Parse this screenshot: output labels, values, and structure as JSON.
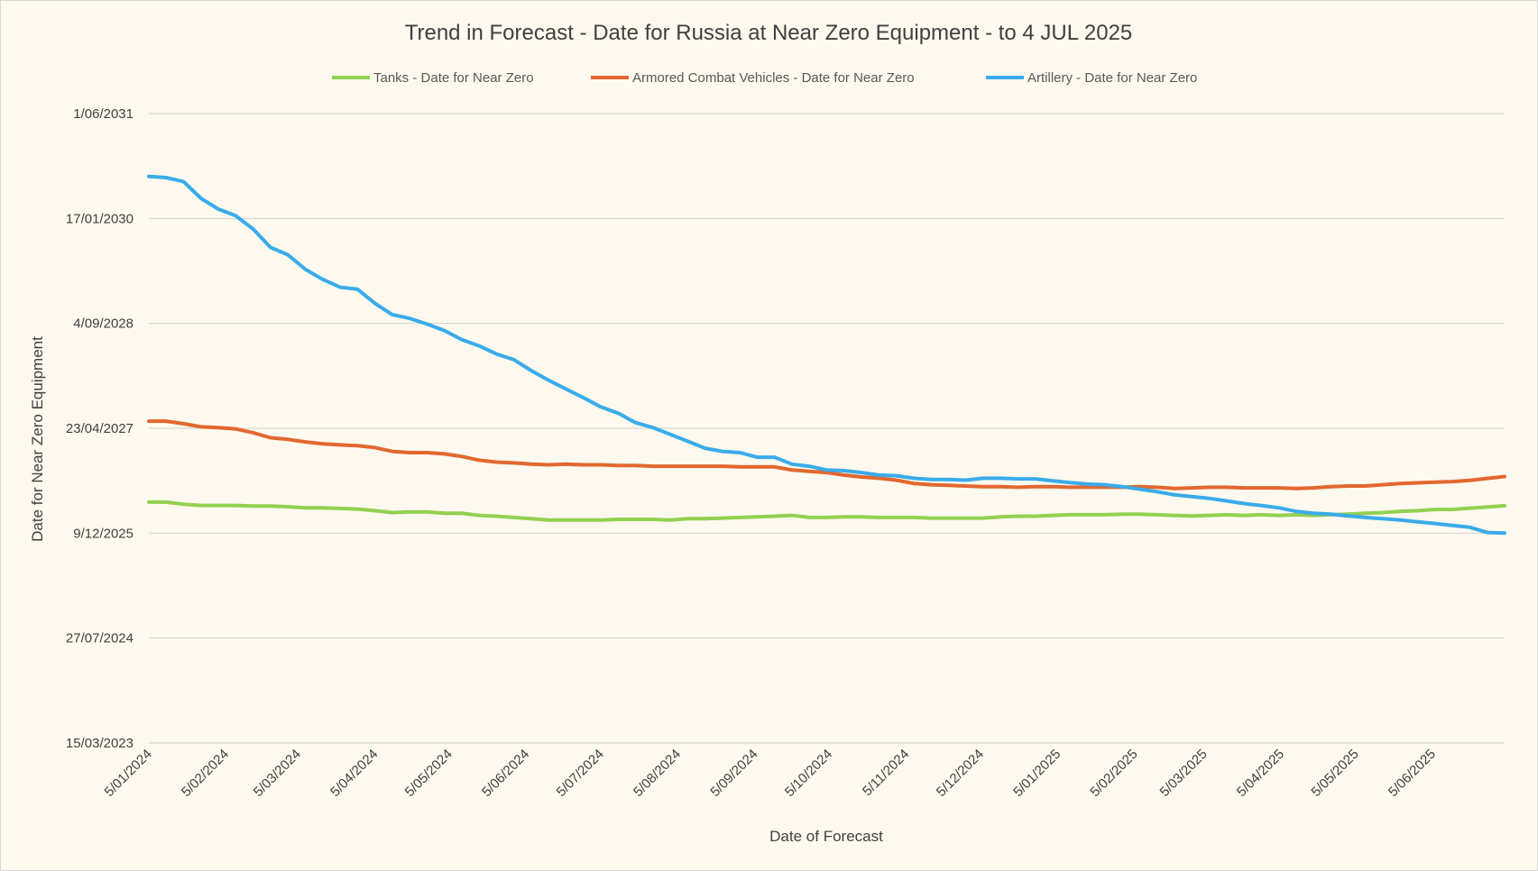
{
  "chart_data": {
    "type": "line",
    "title": "Trend in Forecast - Date for Russia at Near Zero Equipment - to 4 JUL 2025",
    "xlabel": "Date of Forecast",
    "ylabel": "Date for Near Zero Equipment",
    "x_type": "date",
    "xlim": [
      "2024-01-05",
      "2025-07-04"
    ],
    "ylim": [
      "2023-03-15",
      "2031-06-01"
    ],
    "x_ticks": [
      "5/01/2024",
      "5/02/2024",
      "5/03/2024",
      "5/04/2024",
      "5/05/2024",
      "5/06/2024",
      "5/07/2024",
      "5/08/2024",
      "5/09/2024",
      "5/10/2024",
      "5/11/2024",
      "5/12/2024",
      "5/01/2025",
      "5/02/2025",
      "5/03/2025",
      "5/04/2025",
      "5/05/2025",
      "5/06/2025"
    ],
    "y_ticks": [
      "1/06/2031",
      "17/01/2030",
      "4/09/2028",
      "23/04/2027",
      "9/12/2025",
      "27/07/2024",
      "15/03/2023"
    ],
    "grid": true,
    "legend_position": "top",
    "series": [
      {
        "name": "Tanks - Date for Near Zero",
        "color": "#92d050",
        "x": [
          "2024-01-05",
          "2024-01-12",
          "2024-01-19",
          "2024-01-26",
          "2024-02-02",
          "2024-02-09",
          "2024-02-16",
          "2024-02-23",
          "2024-03-01",
          "2024-03-08",
          "2024-03-15",
          "2024-03-22",
          "2024-03-29",
          "2024-04-05",
          "2024-04-12",
          "2024-04-19",
          "2024-04-26",
          "2024-05-03",
          "2024-05-10",
          "2024-05-17",
          "2024-05-24",
          "2024-05-31",
          "2024-06-07",
          "2024-06-14",
          "2024-06-21",
          "2024-06-28",
          "2024-07-05",
          "2024-07-12",
          "2024-07-19",
          "2024-07-26",
          "2024-08-02",
          "2024-08-09",
          "2024-08-16",
          "2024-08-23",
          "2024-08-30",
          "2024-09-06",
          "2024-09-13",
          "2024-09-20",
          "2024-09-27",
          "2024-10-04",
          "2024-10-11",
          "2024-10-18",
          "2024-10-25",
          "2024-11-01",
          "2024-11-08",
          "2024-11-15",
          "2024-11-22",
          "2024-11-29",
          "2024-12-06",
          "2024-12-13",
          "2024-12-20",
          "2024-12-27",
          "2025-01-03",
          "2025-01-10",
          "2025-01-17",
          "2025-01-24",
          "2025-01-31",
          "2025-02-07",
          "2025-02-14",
          "2025-02-21",
          "2025-02-28",
          "2025-03-07",
          "2025-03-14",
          "2025-03-21",
          "2025-03-28",
          "2025-04-04",
          "2025-04-11",
          "2025-04-18",
          "2025-04-25",
          "2025-05-02",
          "2025-05-09",
          "2025-05-16",
          "2025-05-23",
          "2025-05-30",
          "2025-06-06",
          "2025-06-13",
          "2025-06-20",
          "2025-06-27",
          "2025-07-04"
        ],
        "y": [
          "2026-05-06",
          "2026-05-06",
          "2026-04-26",
          "2026-04-20",
          "2026-04-20",
          "2026-04-20",
          "2026-04-17",
          "2026-04-17",
          "2026-04-14",
          "2026-04-09",
          "2026-04-09",
          "2026-04-06",
          "2026-04-03",
          "2026-03-26",
          "2026-03-17",
          "2026-03-20",
          "2026-03-20",
          "2026-03-14",
          "2026-03-14",
          "2026-03-04",
          "2026-02-28",
          "2026-02-22",
          "2026-02-16",
          "2026-02-10",
          "2026-02-10",
          "2026-02-10",
          "2026-02-10",
          "2026-02-13",
          "2026-02-13",
          "2026-02-13",
          "2026-02-10",
          "2026-02-16",
          "2026-02-16",
          "2026-02-19",
          "2026-02-22",
          "2026-02-25",
          "2026-02-28",
          "2026-03-04",
          "2026-02-22",
          "2026-02-22",
          "2026-02-25",
          "2026-02-25",
          "2026-02-22",
          "2026-02-22",
          "2026-02-22",
          "2026-02-19",
          "2026-02-19",
          "2026-02-19",
          "2026-02-19",
          "2026-02-25",
          "2026-02-28",
          "2026-02-28",
          "2026-03-04",
          "2026-03-07",
          "2026-03-07",
          "2026-03-07",
          "2026-03-10",
          "2026-03-10",
          "2026-03-07",
          "2026-03-04",
          "2026-03-01",
          "2026-03-04",
          "2026-03-07",
          "2026-03-04",
          "2026-03-07",
          "2026-03-04",
          "2026-03-07",
          "2026-03-04",
          "2026-03-07",
          "2026-03-10",
          "2026-03-14",
          "2026-03-17",
          "2026-03-23",
          "2026-03-26",
          "2026-04-01",
          "2026-04-01",
          "2026-04-07",
          "2026-04-13",
          "2026-04-19"
        ]
      },
      {
        "name": "Armored Combat Vehicles - Date for Near Zero",
        "color": "#e2682f",
        "x": [
          "2024-01-05",
          "2024-01-12",
          "2024-01-19",
          "2024-01-26",
          "2024-02-02",
          "2024-02-09",
          "2024-02-16",
          "2024-02-23",
          "2024-03-01",
          "2024-03-08",
          "2024-03-15",
          "2024-03-22",
          "2024-03-29",
          "2024-04-05",
          "2024-04-12",
          "2024-04-19",
          "2024-04-26",
          "2024-05-03",
          "2024-05-10",
          "2024-05-17",
          "2024-05-24",
          "2024-05-31",
          "2024-06-07",
          "2024-06-14",
          "2024-06-21",
          "2024-06-28",
          "2024-07-05",
          "2024-07-12",
          "2024-07-19",
          "2024-07-26",
          "2024-08-02",
          "2024-08-09",
          "2024-08-16",
          "2024-08-23",
          "2024-08-30",
          "2024-09-06",
          "2024-09-13",
          "2024-09-20",
          "2024-09-27",
          "2024-10-04",
          "2024-10-11",
          "2024-10-18",
          "2024-10-25",
          "2024-11-01",
          "2024-11-08",
          "2024-11-15",
          "2024-11-22",
          "2024-11-29",
          "2024-12-06",
          "2024-12-13",
          "2024-12-20",
          "2024-12-27",
          "2025-01-03",
          "2025-01-10",
          "2025-01-17",
          "2025-01-24",
          "2025-01-31",
          "2025-02-07",
          "2025-02-14",
          "2025-02-21",
          "2025-02-28",
          "2025-03-07",
          "2025-03-14",
          "2025-03-21",
          "2025-03-28",
          "2025-04-04",
          "2025-04-11",
          "2025-04-18",
          "2025-04-25",
          "2025-05-02",
          "2025-05-09",
          "2025-05-16",
          "2025-05-23",
          "2025-05-30",
          "2025-06-06",
          "2025-06-13",
          "2025-06-20",
          "2025-06-27",
          "2025-07-04"
        ],
        "y": [
          "2027-05-27",
          "2027-05-27",
          "2027-05-15",
          "2027-04-30",
          "2027-04-26",
          "2027-04-20",
          "2027-04-02",
          "2027-03-09",
          "2027-03-01",
          "2027-02-17",
          "2027-02-08",
          "2027-02-03",
          "2027-01-30",
          "2027-01-21",
          "2027-01-03",
          "2026-12-28",
          "2026-12-28",
          "2026-12-22",
          "2026-12-10",
          "2026-11-22",
          "2026-11-13",
          "2026-11-09",
          "2026-11-03",
          "2026-10-31",
          "2026-11-03",
          "2026-10-31",
          "2026-10-31",
          "2026-10-28",
          "2026-10-28",
          "2026-10-24",
          "2026-10-24",
          "2026-10-24",
          "2026-10-24",
          "2026-10-24",
          "2026-10-21",
          "2026-10-21",
          "2026-10-21",
          "2026-10-06",
          "2026-09-30",
          "2026-09-24",
          "2026-09-12",
          "2026-09-03",
          "2026-08-28",
          "2026-08-19",
          "2026-08-03",
          "2026-07-28",
          "2026-07-25",
          "2026-07-22",
          "2026-07-19",
          "2026-07-19",
          "2026-07-16",
          "2026-07-19",
          "2026-07-19",
          "2026-07-16",
          "2026-07-16",
          "2026-07-16",
          "2026-07-16",
          "2026-07-19",
          "2026-07-16",
          "2026-07-10",
          "2026-07-13",
          "2026-07-16",
          "2026-07-16",
          "2026-07-13",
          "2026-07-13",
          "2026-07-13",
          "2026-07-10",
          "2026-07-13",
          "2026-07-19",
          "2026-07-22",
          "2026-07-22",
          "2026-07-28",
          "2026-08-03",
          "2026-08-06",
          "2026-08-09",
          "2026-08-12",
          "2026-08-18",
          "2026-08-27",
          "2026-09-05"
        ]
      },
      {
        "name": "Artillery - Date for Near Zero",
        "color": "#3aabea",
        "x": [
          "2024-01-05",
          "2024-01-12",
          "2024-01-19",
          "2024-01-26",
          "2024-02-02",
          "2024-02-09",
          "2024-02-16",
          "2024-02-23",
          "2024-03-01",
          "2024-03-08",
          "2024-03-15",
          "2024-03-22",
          "2024-03-29",
          "2024-04-05",
          "2024-04-12",
          "2024-04-19",
          "2024-04-26",
          "2024-05-03",
          "2024-05-10",
          "2024-05-17",
          "2024-05-24",
          "2024-05-31",
          "2024-06-07",
          "2024-06-14",
          "2024-06-21",
          "2024-06-28",
          "2024-07-05",
          "2024-07-12",
          "2024-07-19",
          "2024-07-26",
          "2024-08-02",
          "2024-08-09",
          "2024-08-16",
          "2024-08-23",
          "2024-08-30",
          "2024-09-06",
          "2024-09-13",
          "2024-09-20",
          "2024-09-27",
          "2024-10-04",
          "2024-10-11",
          "2024-10-18",
          "2024-10-25",
          "2024-11-01",
          "2024-11-08",
          "2024-11-15",
          "2024-11-22",
          "2024-11-29",
          "2024-12-06",
          "2024-12-13",
          "2024-12-20",
          "2024-12-27",
          "2025-01-03",
          "2025-01-10",
          "2025-01-17",
          "2025-01-24",
          "2025-01-31",
          "2025-02-07",
          "2025-02-14",
          "2025-02-21",
          "2025-02-28",
          "2025-03-07",
          "2025-03-14",
          "2025-03-21",
          "2025-03-28",
          "2025-04-04",
          "2025-04-11",
          "2025-04-18",
          "2025-04-25",
          "2025-05-02",
          "2025-05-09",
          "2025-05-16",
          "2025-05-23",
          "2025-05-30",
          "2025-06-06",
          "2025-06-13",
          "2025-06-20",
          "2025-06-27",
          "2025-07-04"
        ],
        "y": [
          "2030-08-06",
          "2030-07-31",
          "2030-07-12",
          "2030-04-23",
          "2030-03-03",
          "2030-01-30",
          "2029-11-28",
          "2029-09-01",
          "2029-07-28",
          "2029-05-20",
          "2029-04-02",
          "2029-02-23",
          "2029-02-14",
          "2028-12-09",
          "2028-10-16",
          "2028-09-28",
          "2028-09-01",
          "2028-08-01",
          "2028-06-19",
          "2028-05-20",
          "2028-04-11",
          "2028-03-15",
          "2028-01-23",
          "2027-12-08",
          "2027-10-27",
          "2027-09-16",
          "2027-08-03",
          "2027-07-04",
          "2027-05-20",
          "2027-04-26",
          "2027-03-25",
          "2027-02-20",
          "2027-01-18",
          "2027-01-03",
          "2026-12-28",
          "2026-12-06",
          "2026-12-06",
          "2026-11-03",
          "2026-10-24",
          "2026-10-06",
          "2026-10-03",
          "2026-09-24",
          "2026-09-12",
          "2026-09-09",
          "2026-08-28",
          "2026-08-22",
          "2026-08-22",
          "2026-08-19",
          "2026-08-28",
          "2026-08-28",
          "2026-08-25",
          "2026-08-25",
          "2026-08-16",
          "2026-08-07",
          "2026-07-31",
          "2026-07-28",
          "2026-07-19",
          "2026-07-07",
          "2026-06-25",
          "2026-06-10",
          "2026-06-01",
          "2026-05-24",
          "2026-05-12",
          "2026-04-29",
          "2026-04-20",
          "2026-04-09",
          "2026-03-23",
          "2026-03-14",
          "2026-03-10",
          "2026-03-01",
          "2026-02-22",
          "2026-02-16",
          "2026-02-10",
          "2026-02-01",
          "2026-01-24",
          "2026-01-15",
          "2026-01-06",
          "2025-12-12",
          "2025-12-09"
        ]
      }
    ]
  }
}
